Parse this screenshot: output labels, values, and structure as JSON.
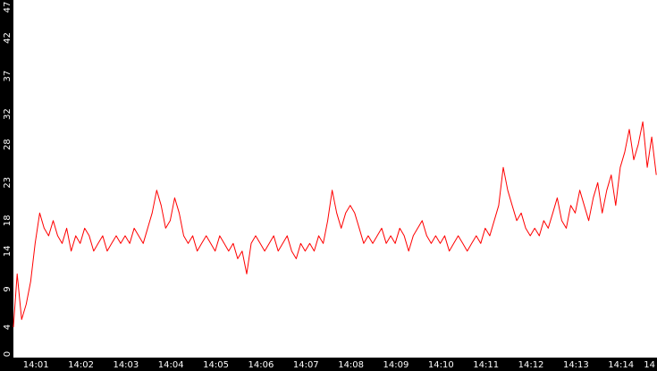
{
  "chart_data": {
    "type": "line",
    "title": "",
    "xlabel": "",
    "ylabel": "",
    "colors": {
      "background": "#000000",
      "plot_area": "#ffffff",
      "line": "#ff0000",
      "text": "#ffffff"
    },
    "grid": false,
    "legend": "none",
    "xlim": [
      "14:00:30",
      "14:14:48"
    ],
    "ylim": [
      0,
      47
    ],
    "y_ticks": [
      "0",
      "4",
      "9",
      "14",
      "18",
      "23",
      "28",
      "32",
      "37",
      "42",
      "47"
    ],
    "x_ticks": [
      "14:01",
      "14:02",
      "14:03",
      "14:04",
      "14:05",
      "14:06",
      "14:07",
      "14:08",
      "14:09",
      "14:10",
      "14:11",
      "14:12",
      "14:13",
      "14:14",
      "14"
    ],
    "series": [
      {
        "name": "",
        "points": [
          [
            "14:00:30",
            4
          ],
          [
            "14:00:35",
            11
          ],
          [
            "14:00:41",
            5
          ],
          [
            "14:00:47",
            7
          ],
          [
            "14:00:53",
            10
          ],
          [
            "14:00:59",
            15
          ],
          [
            "14:01:05",
            19
          ],
          [
            "14:01:11",
            17
          ],
          [
            "14:01:17",
            16
          ],
          [
            "14:01:23",
            18
          ],
          [
            "14:01:29",
            16
          ],
          [
            "14:01:35",
            15
          ],
          [
            "14:01:41",
            17
          ],
          [
            "14:01:47",
            14
          ],
          [
            "14:01:53",
            16
          ],
          [
            "14:01:59",
            15
          ],
          [
            "14:02:05",
            17
          ],
          [
            "14:02:11",
            16
          ],
          [
            "14:02:17",
            14
          ],
          [
            "14:02:23",
            15
          ],
          [
            "14:02:29",
            16
          ],
          [
            "14:02:35",
            14
          ],
          [
            "14:02:41",
            15
          ],
          [
            "14:02:47",
            16
          ],
          [
            "14:02:53",
            15
          ],
          [
            "14:02:59",
            16
          ],
          [
            "14:03:05",
            15
          ],
          [
            "14:03:11",
            17
          ],
          [
            "14:03:17",
            16
          ],
          [
            "14:03:23",
            15
          ],
          [
            "14:03:29",
            17
          ],
          [
            "14:03:35",
            19
          ],
          [
            "14:03:41",
            22
          ],
          [
            "14:03:47",
            20
          ],
          [
            "14:03:53",
            17
          ],
          [
            "14:03:59",
            18
          ],
          [
            "14:04:05",
            21
          ],
          [
            "14:04:11",
            19
          ],
          [
            "14:04:17",
            16
          ],
          [
            "14:04:23",
            15
          ],
          [
            "14:04:29",
            16
          ],
          [
            "14:04:35",
            14
          ],
          [
            "14:04:41",
            15
          ],
          [
            "14:04:47",
            16
          ],
          [
            "14:04:53",
            15
          ],
          [
            "14:04:59",
            14
          ],
          [
            "14:05:05",
            16
          ],
          [
            "14:05:11",
            15
          ],
          [
            "14:05:17",
            14
          ],
          [
            "14:05:23",
            15
          ],
          [
            "14:05:29",
            13
          ],
          [
            "14:05:35",
            14
          ],
          [
            "14:05:41",
            11
          ],
          [
            "14:05:47",
            15
          ],
          [
            "14:05:53",
            16
          ],
          [
            "14:05:59",
            15
          ],
          [
            "14:06:05",
            14
          ],
          [
            "14:06:11",
            15
          ],
          [
            "14:06:17",
            16
          ],
          [
            "14:06:23",
            14
          ],
          [
            "14:06:29",
            15
          ],
          [
            "14:06:35",
            16
          ],
          [
            "14:06:41",
            14
          ],
          [
            "14:06:47",
            13
          ],
          [
            "14:06:53",
            15
          ],
          [
            "14:06:59",
            14
          ],
          [
            "14:07:05",
            15
          ],
          [
            "14:07:11",
            14
          ],
          [
            "14:07:17",
            16
          ],
          [
            "14:07:23",
            15
          ],
          [
            "14:07:29",
            18
          ],
          [
            "14:07:35",
            22
          ],
          [
            "14:07:41",
            19
          ],
          [
            "14:07:47",
            17
          ],
          [
            "14:07:53",
            19
          ],
          [
            "14:07:59",
            20
          ],
          [
            "14:08:05",
            19
          ],
          [
            "14:08:11",
            17
          ],
          [
            "14:08:17",
            15
          ],
          [
            "14:08:23",
            16
          ],
          [
            "14:08:29",
            15
          ],
          [
            "14:08:35",
            16
          ],
          [
            "14:08:41",
            17
          ],
          [
            "14:08:47",
            15
          ],
          [
            "14:08:53",
            16
          ],
          [
            "14:08:59",
            15
          ],
          [
            "14:09:05",
            17
          ],
          [
            "14:09:11",
            16
          ],
          [
            "14:09:17",
            14
          ],
          [
            "14:09:23",
            16
          ],
          [
            "14:09:29",
            17
          ],
          [
            "14:09:35",
            18
          ],
          [
            "14:09:41",
            16
          ],
          [
            "14:09:47",
            15
          ],
          [
            "14:09:53",
            16
          ],
          [
            "14:09:59",
            15
          ],
          [
            "14:10:05",
            16
          ],
          [
            "14:10:11",
            14
          ],
          [
            "14:10:17",
            15
          ],
          [
            "14:10:23",
            16
          ],
          [
            "14:10:29",
            15
          ],
          [
            "14:10:35",
            14
          ],
          [
            "14:10:41",
            15
          ],
          [
            "14:10:47",
            16
          ],
          [
            "14:10:53",
            15
          ],
          [
            "14:10:59",
            17
          ],
          [
            "14:11:05",
            16
          ],
          [
            "14:11:11",
            18
          ],
          [
            "14:11:17",
            20
          ],
          [
            "14:11:23",
            25
          ],
          [
            "14:11:29",
            22
          ],
          [
            "14:11:35",
            20
          ],
          [
            "14:11:41",
            18
          ],
          [
            "14:11:47",
            19
          ],
          [
            "14:11:53",
            17
          ],
          [
            "14:11:59",
            16
          ],
          [
            "14:12:05",
            17
          ],
          [
            "14:12:11",
            16
          ],
          [
            "14:12:17",
            18
          ],
          [
            "14:12:23",
            17
          ],
          [
            "14:12:29",
            19
          ],
          [
            "14:12:35",
            21
          ],
          [
            "14:12:41",
            18
          ],
          [
            "14:12:47",
            17
          ],
          [
            "14:12:53",
            20
          ],
          [
            "14:12:59",
            19
          ],
          [
            "14:13:05",
            22
          ],
          [
            "14:13:11",
            20
          ],
          [
            "14:13:17",
            18
          ],
          [
            "14:13:23",
            21
          ],
          [
            "14:13:29",
            23
          ],
          [
            "14:13:35",
            19
          ],
          [
            "14:13:41",
            22
          ],
          [
            "14:13:47",
            24
          ],
          [
            "14:13:53",
            20
          ],
          [
            "14:13:59",
            25
          ],
          [
            "14:14:05",
            27
          ],
          [
            "14:14:11",
            30
          ],
          [
            "14:14:17",
            26
          ],
          [
            "14:14:23",
            28
          ],
          [
            "14:14:29",
            31
          ],
          [
            "14:14:35",
            25
          ],
          [
            "14:14:41",
            29
          ],
          [
            "14:14:47",
            24
          ]
        ]
      }
    ]
  }
}
